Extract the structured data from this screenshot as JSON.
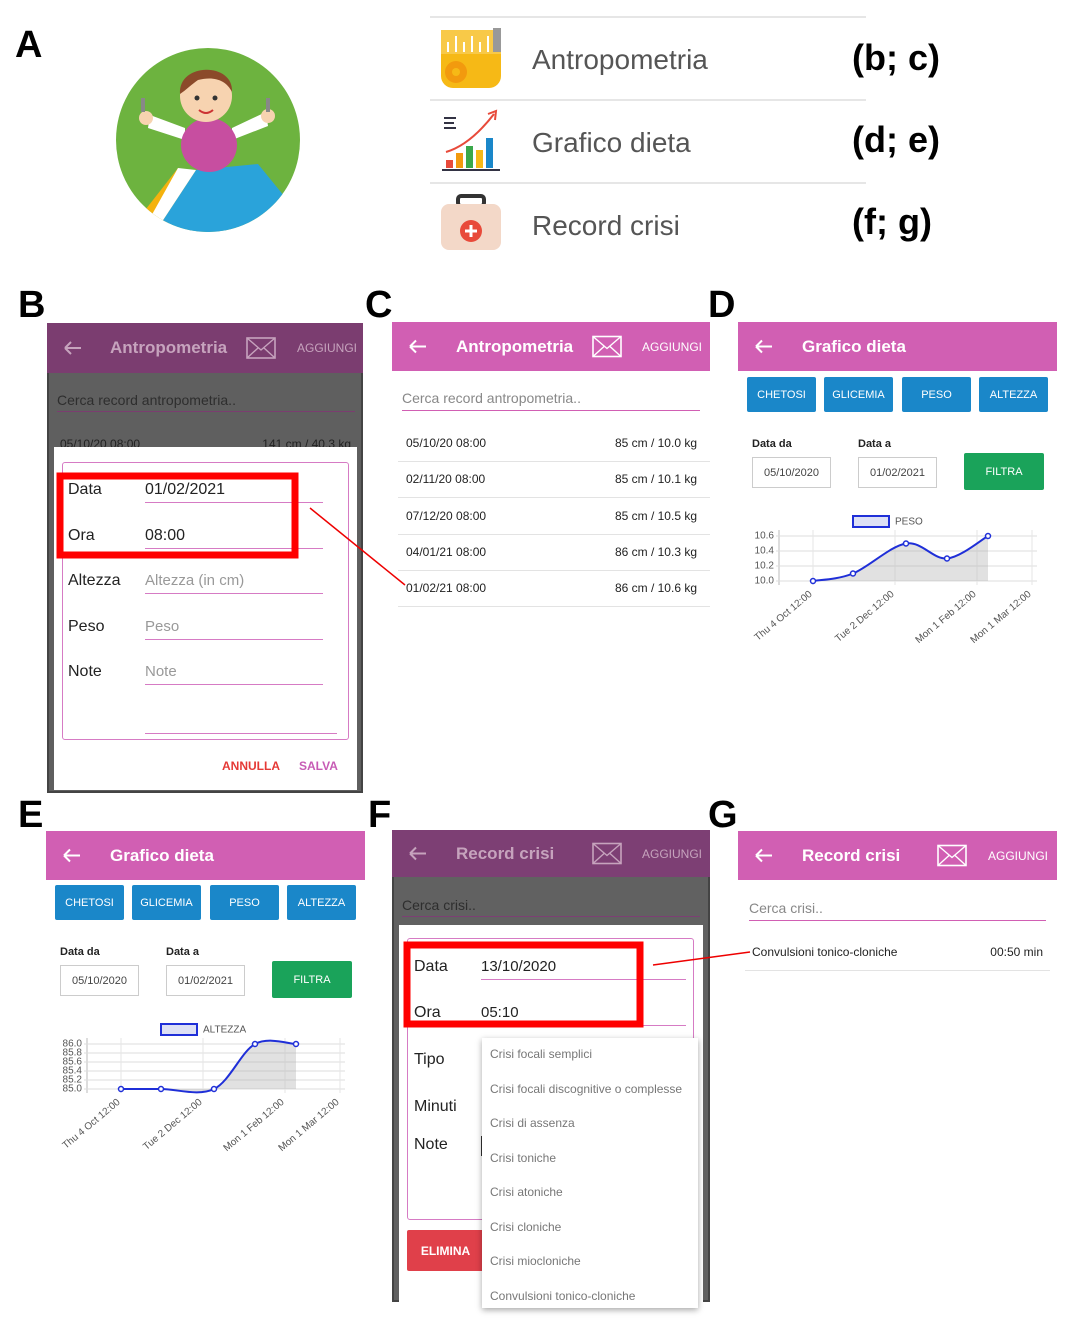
{
  "panel_labels": [
    "A",
    "B",
    "C",
    "D",
    "E",
    "F",
    "G"
  ],
  "menu": [
    {
      "label": "Antropometria",
      "ref": "(b; c)"
    },
    {
      "label": "Grafico dieta",
      "ref": "(d; e)"
    },
    {
      "label": "Record crisi",
      "ref": "(f; g)"
    }
  ],
  "antropometria_form": {
    "title": "Antropometria",
    "action": "AGGIUNGI",
    "search": "Cerca record antropometria..",
    "background_row": [
      "05/10/20 08:00",
      "141 cm / 40.3 kg"
    ],
    "fields": [
      {
        "label": "Data",
        "value": "01/02/2021"
      },
      {
        "label": "Ora",
        "value": "08:00"
      },
      {
        "label": "Altezza",
        "placeholder": "Altezza (in cm)"
      },
      {
        "label": "Peso",
        "placeholder": "Peso"
      },
      {
        "label": "Note",
        "placeholder": "Note"
      }
    ],
    "buttons": [
      "ANNULLA",
      "SALVA"
    ]
  },
  "antropometria_list": {
    "title": "Antropometria",
    "action": "AGGIUNGI",
    "search": "Cerca record antropometria..",
    "rows": [
      [
        "05/10/20 08:00",
        "85 cm / 10.0 kg"
      ],
      [
        "02/11/20 08:00",
        "85 cm / 10.1 kg"
      ],
      [
        "07/12/20 08:00",
        "85 cm / 10.5 kg"
      ],
      [
        "04/01/21 08:00",
        "86 cm / 10.3 kg"
      ],
      [
        "01/02/21 08:00",
        "86 cm / 10.6 kg"
      ]
    ]
  },
  "grafico_screens": [
    {
      "title": "Grafico dieta",
      "tabs": [
        "CHETOSI",
        "GLICEMIA",
        "PESO",
        "ALTEZZA"
      ],
      "from_label": "Data da",
      "from_value": "05/10/2020",
      "to_label": "Data a",
      "to_value": "01/02/2021",
      "filter": "FILTRA"
    },
    {
      "title": "Grafico dieta",
      "tabs": [
        "CHETOSI",
        "GLICEMIA",
        "PESO",
        "ALTEZZA"
      ],
      "from_label": "Data da",
      "from_value": "05/10/2020",
      "to_label": "Data a",
      "to_value": "01/02/2021",
      "filter": "FILTRA"
    }
  ],
  "chart_data": [
    {
      "type": "line",
      "x_labels": [
        "Thu 4 Oct 12:00",
        "Tue 2 Dec 12:00",
        "Mon 1 Feb 12:00",
        "Mon 1 Mar 12:00"
      ],
      "series": [
        {
          "name": "PESO",
          "color": "#1f2fd8",
          "values": [
            10,
            10.1,
            10.5,
            10.3,
            10.6
          ]
        }
      ],
      "ylim": [
        10,
        10.6
      ],
      "yticks": [
        {
          "value": 10,
          "label": "10.0"
        },
        10.2,
        10.4,
        10.6
      ],
      "grid": true
    },
    {
      "type": "line",
      "x_labels": [
        "Thu 4 Oct 12:00",
        "Tue 2 Dec 12:00",
        "Mon 1 Feb 12:00",
        "Mon 1 Mar 12:00"
      ],
      "series": [
        {
          "name": "ALTEZZA",
          "color": "#1f2fd8",
          "values": [
            85,
            85,
            85,
            86,
            86
          ]
        }
      ],
      "ylim": [
        85,
        86
      ],
      "yticks": [
        {
          "value": 85,
          "label": "85.0"
        },
        85.2,
        85.4,
        85.6,
        85.8,
        {
          "value": 86,
          "label": "86.0"
        }
      ],
      "grid": true
    }
  ],
  "crisi_form": {
    "title": "Record crisi",
    "action": "AGGIUNGI",
    "search": "Cerca crisi..",
    "fields": [
      {
        "label": "Data",
        "value": "13/10/2020"
      },
      {
        "label": "Ora",
        "value": "05:10"
      },
      {
        "label": "Tipo"
      },
      {
        "label": "Minuti"
      },
      {
        "label": "Note"
      }
    ],
    "delete": "ELIMINA",
    "options": [
      "Crisi focali semplici",
      "Crisi focali discognitive o complesse",
      "Crisi di assenza",
      "Crisi toniche",
      "Crisi atoniche",
      "Crisi cloniche",
      "Crisi miocloniche",
      "Convulsioni tonico-cloniche"
    ]
  },
  "crisi_list": {
    "title": "Record crisi",
    "action": "AGGIUNGI",
    "search": "Cerca crisi..",
    "rows": [
      [
        "Convulsioni tonico-cloniche",
        "00:50 min"
      ]
    ]
  }
}
